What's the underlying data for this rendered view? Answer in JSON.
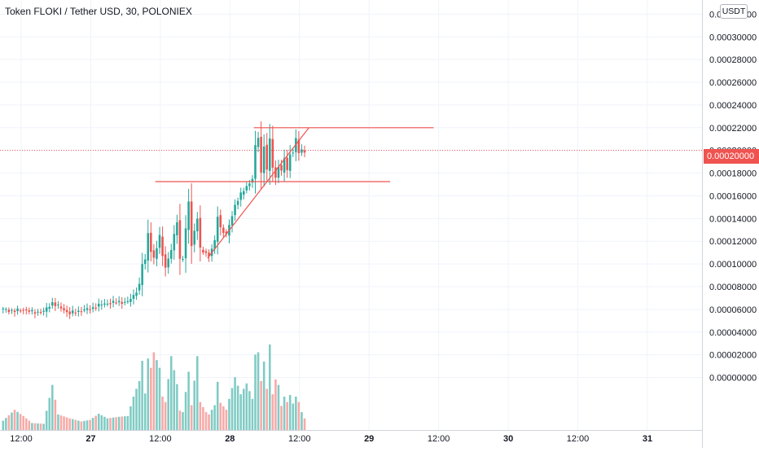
{
  "header": {
    "title": "Token FLOKI / Tether USD, 30, POLONIEX"
  },
  "price_axis": {
    "currency": "USDT",
    "labels": [
      "0.00032000",
      "0.00030000",
      "0.00028000",
      "0.00026000",
      "0.00024000",
      "0.00022000",
      "0.00020000",
      "0.00018000",
      "0.00016000",
      "0.00014000",
      "0.00012000",
      "0.00010000",
      "0.00008000",
      "0.00006000",
      "0.00004000",
      "0.00002000",
      "0.00000000"
    ],
    "last_price_label": "0.00020000"
  },
  "time_axis": {
    "labels": [
      "12:00",
      "27",
      "12:00",
      "28",
      "12:00",
      "29",
      "12:00",
      "30",
      "12:00",
      "31"
    ]
  },
  "colors": {
    "up": "#26a69a",
    "down": "#ef5350",
    "up_volume": "#80cbc4",
    "down_volume": "#f7a9a7",
    "drawing": "#ef5350",
    "grid": "#f0f3fa",
    "axis_border": "#d1d4dc"
  },
  "chart_data": {
    "type": "candlestick",
    "symbol": "Token FLOKI / Tether USD",
    "interval": "30",
    "exchange": "POLONIEX",
    "y_range": [
      -2.4e-05,
      0.000326
    ],
    "last_price": 0.0002,
    "x_ticks": [
      {
        "label": "12:00",
        "bar": 0
      },
      {
        "label": "27",
        "bar": 24
      },
      {
        "label": "12:00",
        "bar": 48
      },
      {
        "label": "28",
        "bar": 72
      },
      {
        "label": "12:00",
        "bar": 96
      },
      {
        "label": "29",
        "bar": 120
      },
      {
        "label": "12:00",
        "bar": 144
      },
      {
        "label": "30",
        "bar": 168
      },
      {
        "label": "12:00",
        "bar": 192
      },
      {
        "label": "31",
        "bar": 216
      }
    ],
    "anchors": [
      [
        0,
        6e-05,
        1.2
      ],
      [
        4,
        5.85e-05,
        2.6
      ],
      [
        7,
        6e-05,
        1.8
      ],
      [
        10,
        5.75e-05,
        0.9
      ],
      [
        14,
        5.8e-05,
        0.8
      ],
      [
        17,
        6.6e-05,
        5.8
      ],
      [
        19,
        6.25e-05,
        2.0
      ],
      [
        23,
        5.65e-05,
        1.5
      ],
      [
        27,
        5.9e-05,
        1.1
      ],
      [
        30,
        6.05e-05,
        1.3
      ],
      [
        33,
        6.35e-05,
        2.1
      ],
      [
        36,
        6.55e-05,
        1.5
      ],
      [
        40,
        6.65e-05,
        1.7
      ],
      [
        43,
        6.65e-05,
        1.8
      ],
      [
        45,
        7.2e-05,
        4.3
      ],
      [
        47,
        8.15e-05,
        6.3
      ],
      [
        48,
        0.0001,
        8.9
      ],
      [
        49,
        0.000103,
        4.7
      ],
      [
        50,
        0.0001275,
        9.2
      ],
      [
        51,
        0.000112,
        8.0
      ],
      [
        52,
        0.0001045,
        10.0
      ],
      [
        54,
        0.000124,
        8.0
      ],
      [
        55,
        0.0001085,
        4.3
      ],
      [
        56,
        9.7e-05,
        3.6
      ],
      [
        58,
        0.000112,
        9.5
      ],
      [
        60,
        0.0001385,
        5.9
      ],
      [
        61,
        0.000104,
        2.5
      ],
      [
        62,
        0.000105,
        2.3
      ],
      [
        64,
        0.000155,
        7.5
      ],
      [
        65,
        0.000117,
        3.2
      ],
      [
        67,
        0.0001405,
        9.5
      ],
      [
        68,
        0.0001125,
        3.6
      ],
      [
        70,
        0.00011,
        2.3
      ],
      [
        71,
        0.000107,
        2.0
      ],
      [
        73,
        0.0001195,
        3.2
      ],
      [
        74,
        0.000143,
        6.2
      ],
      [
        75,
        0.000132,
        3.5
      ],
      [
        77,
        0.000125,
        2.6
      ],
      [
        80,
        0.000152,
        6.8
      ],
      [
        82,
        0.000161,
        4.6
      ],
      [
        84,
        0.0001685,
        6.0
      ],
      [
        86,
        0.000175,
        4.0
      ],
      [
        87,
        0.000203,
        9.7
      ],
      [
        88,
        0.000212,
        10.0
      ],
      [
        89,
        0.00018,
        6.3
      ],
      [
        90,
        0.000205,
        8.8
      ],
      [
        91,
        0.000182,
        5.3
      ],
      [
        92,
        0.00021,
        11.0
      ],
      [
        93,
        0.000185,
        4.6
      ],
      [
        94,
        0.000176,
        6.5
      ],
      [
        95,
        0.000187,
        5.8
      ],
      [
        96,
        0.0001805,
        3.1
      ],
      [
        97,
        0.0001935,
        4.3
      ],
      [
        98,
        0.000182,
        3.6
      ],
      [
        99,
        0.0001975,
        4.5
      ],
      [
        100,
        0.0001985,
        3.4
      ],
      [
        101,
        0.0002095,
        4.3
      ],
      [
        102,
        0.000198,
        3.6
      ],
      [
        103,
        0.0002,
        2.3
      ],
      [
        104,
        0.0002,
        1.5
      ]
    ],
    "volume_scale_label": "",
    "drawings": [
      {
        "kind": "horizontal_segment",
        "name": "resistance",
        "from_bar": 87,
        "to_bar": 149,
        "price": 0.00022
      },
      {
        "kind": "horizontal_segment",
        "name": "support",
        "from_bar": 53,
        "to_bar": 134,
        "price": 0.0001725
      },
      {
        "kind": "trend_segment",
        "name": "ascending-support",
        "from_bar": 71,
        "from_price": 0.000105,
        "to_bar": 106,
        "to_price": 0.00022
      }
    ]
  }
}
